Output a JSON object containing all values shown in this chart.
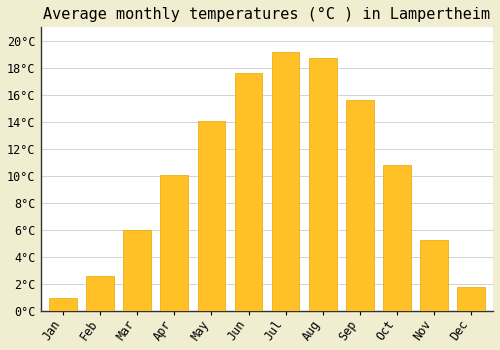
{
  "title": "Average monthly temperatures (°C ) in Lampertheim",
  "months": [
    "Jan",
    "Feb",
    "Mar",
    "Apr",
    "May",
    "Jun",
    "Jul",
    "Aug",
    "Sep",
    "Oct",
    "Nov",
    "Dec"
  ],
  "values": [
    1.0,
    2.6,
    6.0,
    10.1,
    14.1,
    17.6,
    19.2,
    18.7,
    15.6,
    10.8,
    5.3,
    1.8
  ],
  "bar_color": "#FFC125",
  "bar_edge_color": "#E8A800",
  "background_color": "#F0EDD0",
  "plot_bg_color": "#FFFFFF",
  "grid_color": "#CCCCCC",
  "ylim": [
    0,
    21
  ],
  "yticks": [
    0,
    2,
    4,
    6,
    8,
    10,
    12,
    14,
    16,
    18,
    20
  ],
  "ytick_labels": [
    "0°C",
    "2°C",
    "4°C",
    "6°C",
    "8°C",
    "10°C",
    "12°C",
    "14°C",
    "16°C",
    "18°C",
    "20°C"
  ],
  "title_fontsize": 11,
  "tick_fontsize": 8.5,
  "font_family": "monospace",
  "bar_width": 0.75
}
